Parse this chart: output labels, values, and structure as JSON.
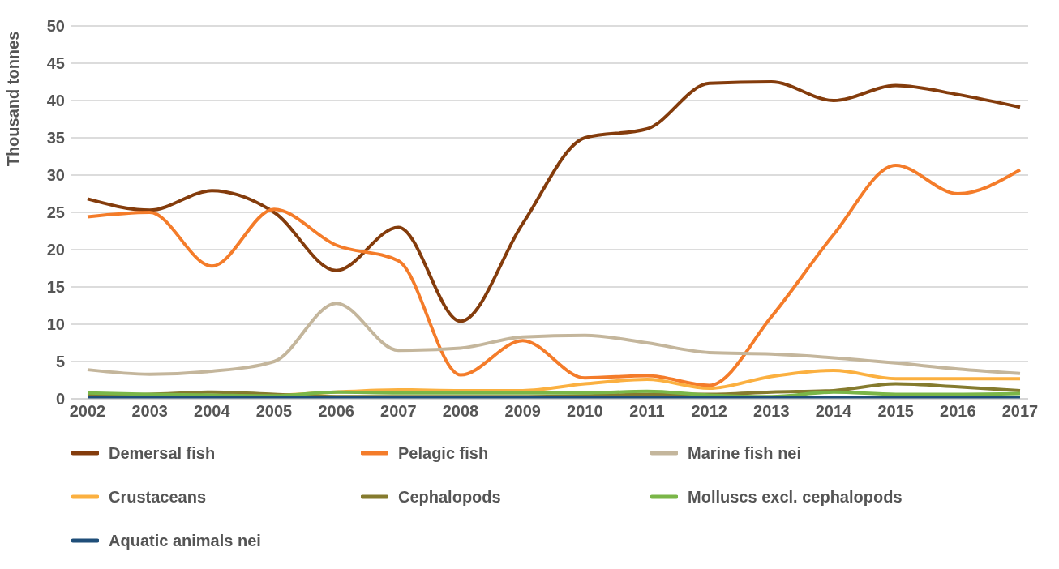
{
  "chart_data": {
    "type": "line",
    "ylabel": "Thousand tonnes",
    "categories": [
      "2002",
      "2003",
      "2004",
      "2005",
      "2006",
      "2007",
      "2008",
      "2009",
      "2010",
      "2011",
      "2012",
      "2013",
      "2014",
      "2015",
      "2016",
      "2017"
    ],
    "series": [
      {
        "name": "Demersal fish",
        "color": "#843c0c",
        "values": [
          26.8,
          25.3,
          27.9,
          25,
          17.2,
          23,
          10.4,
          23.5,
          35,
          36.2,
          42.3,
          42.5,
          40,
          42,
          40.8,
          39.1
        ]
      },
      {
        "name": "Pelagic fish",
        "color": "#f47c2a",
        "values": [
          24.4,
          25,
          17.8,
          25.4,
          20.6,
          18.5,
          3.2,
          7.8,
          2.8,
          3.1,
          1.8,
          11,
          22,
          31.3,
          27.5,
          30.7
        ]
      },
      {
        "name": "Marine fish nei",
        "color": "#c4b69c",
        "values": [
          3.9,
          3.3,
          3.7,
          5,
          12.8,
          6.5,
          6.8,
          8.3,
          8.5,
          7.5,
          6.2,
          6,
          5.5,
          4.8,
          4,
          3.4
        ]
      },
      {
        "name": "Crustaceans",
        "color": "#fbb040",
        "values": [
          null,
          null,
          null,
          0.4,
          0.9,
          1.2,
          1.1,
          1.1,
          2,
          2.6,
          1.4,
          3,
          3.8,
          2.7,
          2.7,
          2.7
        ]
      },
      {
        "name": "Cephalopods",
        "color": "#857b2e",
        "values": [
          0.5,
          0.6,
          0.9,
          0.6,
          0.3,
          0.3,
          0.3,
          0.3,
          0.4,
          0.6,
          0.6,
          0.9,
          1.1,
          2,
          1.6,
          1.1
        ]
      },
      {
        "name": "Molluscs excl. cephalopods",
        "color": "#7ab648",
        "values": [
          0.8,
          0.6,
          0.5,
          0.4,
          0.9,
          0.8,
          0.8,
          0.8,
          0.8,
          1,
          0.5,
          0.3,
          0.9,
          0.6,
          0.6,
          0.7
        ]
      },
      {
        "name": "Aquatic animals nei",
        "color": "#1f4e79",
        "values": [
          0.1,
          0.1,
          0.1,
          0.1,
          0.1,
          0.1,
          0.1,
          0.1,
          0.1,
          0.1,
          0.1,
          0.1,
          0.1,
          0.1,
          0.1,
          0.1
        ]
      }
    ],
    "ylim": [
      0,
      50
    ],
    "yticks": [
      0,
      5,
      10,
      15,
      20,
      25,
      30,
      35,
      40,
      45,
      50
    ],
    "grid": "y",
    "legend": "bottom",
    "marker": "none",
    "line_style": "solid"
  }
}
